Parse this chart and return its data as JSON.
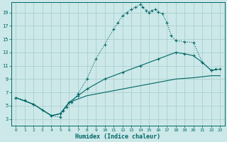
{
  "xlabel": "Humidex (Indice chaleur)",
  "bg_color": "#cce8e8",
  "grid_color": "#aad0d0",
  "line_color": "#006666",
  "xlim": [
    -0.5,
    23.5
  ],
  "ylim": [
    2,
    20.5
  ],
  "xticks": [
    0,
    1,
    2,
    3,
    4,
    5,
    6,
    7,
    8,
    9,
    10,
    11,
    12,
    13,
    14,
    15,
    16,
    17,
    18,
    19,
    20,
    21,
    22,
    23
  ],
  "yticks": [
    3,
    5,
    7,
    9,
    11,
    13,
    15,
    17,
    19
  ],
  "curve1_x": [
    0,
    1,
    2,
    3,
    4,
    5,
    5.3,
    5.7,
    6.3,
    7,
    8,
    9,
    10,
    11,
    11.5,
    12,
    12.5,
    13,
    13.5,
    14,
    14.3,
    14.7,
    15,
    15.3,
    15.7,
    16,
    16.5,
    17,
    17.5,
    18,
    19,
    20,
    21,
    22,
    22.5
  ],
  "curve1_y": [
    6.2,
    5.8,
    5.2,
    4.3,
    3.5,
    3.3,
    4.2,
    4.8,
    5.5,
    6.8,
    9.0,
    12.0,
    14.2,
    16.5,
    17.5,
    18.5,
    19.0,
    19.5,
    19.8,
    20.2,
    19.8,
    19.3,
    19.0,
    19.3,
    19.5,
    19.1,
    18.8,
    17.5,
    15.5,
    14.8,
    14.6,
    14.5,
    11.5,
    10.3,
    10.5
  ],
  "curve2_x": [
    0,
    2,
    4,
    5,
    6,
    7,
    8,
    10,
    12,
    14,
    16,
    18,
    19,
    20,
    21,
    22,
    23
  ],
  "curve2_y": [
    6.2,
    5.2,
    3.5,
    3.8,
    5.5,
    6.5,
    7.5,
    9.0,
    10.0,
    11.0,
    12.0,
    13.0,
    12.8,
    12.5,
    11.5,
    10.3,
    10.5
  ],
  "curve3_x": [
    0,
    2,
    4,
    5,
    6,
    8,
    10,
    12,
    14,
    16,
    18,
    20,
    22,
    23
  ],
  "curve3_y": [
    6.2,
    5.2,
    3.5,
    3.8,
    5.5,
    6.5,
    7.0,
    7.5,
    8.0,
    8.5,
    9.0,
    9.2,
    9.5,
    9.5
  ]
}
